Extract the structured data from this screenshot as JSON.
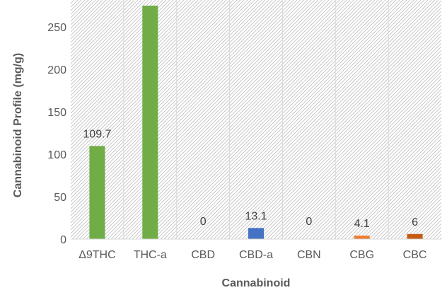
{
  "chart_data": {
    "type": "bar",
    "title": "",
    "xlabel": "Cannabinoid",
    "ylabel": "Cannabinoid Profile (mg/g)",
    "ylim": [
      0,
      275
    ],
    "yticks": [
      0,
      50,
      100,
      150,
      200,
      250
    ],
    "ytick_labels": [
      "0",
      "50",
      "100",
      "150",
      "200",
      "250"
    ],
    "grid": false,
    "plot_background": "diagonal-hatch",
    "categories": [
      "Δ9THC",
      "THC-a",
      "CBD",
      "CBD-a",
      "CBN",
      "CBG",
      "CBC"
    ],
    "values": [
      109.7,
      275,
      0,
      13.1,
      0,
      4.1,
      6
    ],
    "value_labels": [
      "109.7",
      "",
      "0",
      "13.1",
      "0",
      "4.1",
      "6"
    ],
    "colors": [
      "#70ad47",
      "#70ad47",
      "#70ad47",
      "#4472c4",
      "#4472c4",
      "#ed7d31",
      "#c55a11"
    ]
  }
}
